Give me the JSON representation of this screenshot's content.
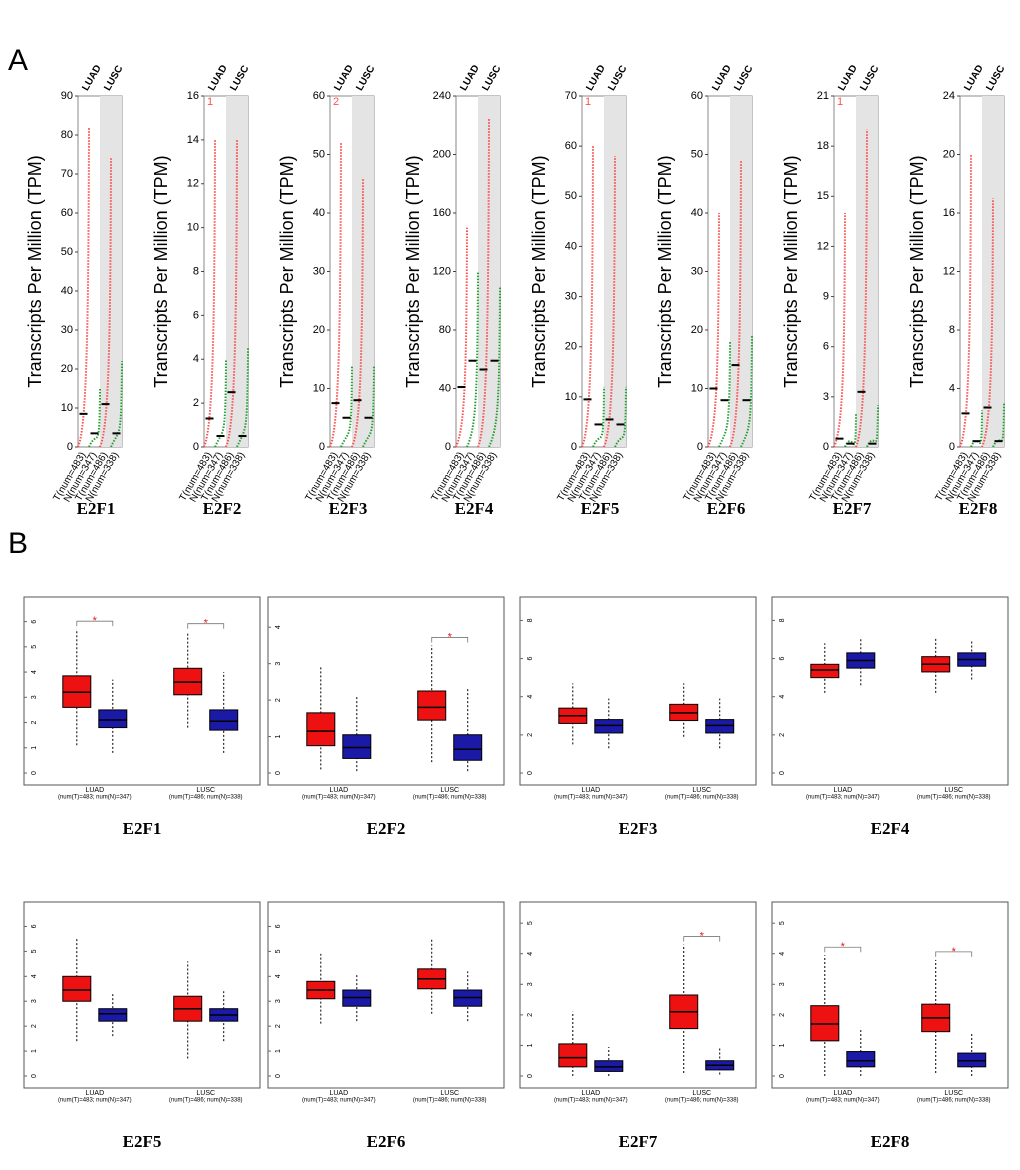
{
  "panel_labels": [
    "A",
    "B"
  ],
  "chart_data": [
    {
      "type": "dot",
      "title": "E2F1",
      "y_label": "Transcripts Per Million (TPM)",
      "ylim": [
        0,
        90
      ],
      "yticks": [
        0,
        10,
        20,
        30,
        40,
        50,
        60,
        70,
        80,
        90
      ],
      "groups": [
        {
          "name": "LUAD",
          "series": [
            {
              "name": "T(num=483)",
              "color": "#ff4d4d",
              "median": 8.5,
              "max": 82
            },
            {
              "name": "N(num=347)",
              "color": "#22a030",
              "median": 3.5,
              "max": 15
            }
          ]
        },
        {
          "name": "LUSC",
          "series": [
            {
              "name": "T(num=486)",
              "color": "#ff4d4d",
              "median": 11,
              "max": 74
            },
            {
              "name": "N(num=338)",
              "color": "#22a030",
              "median": 3.5,
              "max": 22
            }
          ]
        }
      ]
    },
    {
      "type": "dot",
      "title": "E2F2",
      "y_label": "Transcripts Per Million (TPM)",
      "note": "1",
      "ylim": [
        0,
        16
      ],
      "yticks": [
        0,
        2,
        4,
        6,
        8,
        10,
        12,
        14,
        16
      ],
      "groups": [
        {
          "name": "LUAD",
          "series": [
            {
              "name": "T(num=483)",
              "color": "#ff4d4d",
              "median": 1.3,
              "max": 14
            },
            {
              "name": "N(num=347)",
              "color": "#22a030",
              "median": 0.5,
              "max": 4
            }
          ]
        },
        {
          "name": "LUSC",
          "series": [
            {
              "name": "T(num=486)",
              "color": "#ff4d4d",
              "median": 2.5,
              "max": 14
            },
            {
              "name": "N(num=338)",
              "color": "#22a030",
              "median": 0.5,
              "max": 4.5
            }
          ]
        }
      ]
    },
    {
      "type": "dot",
      "title": "E2F3",
      "y_label": "Transcripts Per Million (TPM)",
      "note": "2",
      "ylim": [
        0,
        60
      ],
      "yticks": [
        0,
        10,
        20,
        30,
        40,
        50,
        60
      ],
      "groups": [
        {
          "name": "LUAD",
          "series": [
            {
              "name": "T(num=483)",
              "color": "#ff4d4d",
              "median": 7.5,
              "max": 52
            },
            {
              "name": "N(num=347)",
              "color": "#22a030",
              "median": 5,
              "max": 14
            }
          ]
        },
        {
          "name": "LUSC",
          "series": [
            {
              "name": "T(num=486)",
              "color": "#ff4d4d",
              "median": 8,
              "max": 46
            },
            {
              "name": "N(num=338)",
              "color": "#22a030",
              "median": 5,
              "max": 14
            }
          ]
        }
      ]
    },
    {
      "type": "dot",
      "title": "E2F4",
      "y_label": "Transcripts Per Million (TPM)",
      "ylim": [
        0,
        240
      ],
      "yticks": [
        0,
        40,
        80,
        120,
        160,
        200,
        240
      ],
      "groups": [
        {
          "name": "LUAD",
          "series": [
            {
              "name": "T(num=483)",
              "color": "#ff4d4d",
              "median": 41,
              "max": 150
            },
            {
              "name": "N(num=347)",
              "color": "#22a030",
              "median": 59,
              "max": 120
            }
          ]
        },
        {
          "name": "LUSC",
          "series": [
            {
              "name": "T(num=486)",
              "color": "#ff4d4d",
              "median": 53,
              "max": 225
            },
            {
              "name": "N(num=338)",
              "color": "#22a030",
              "median": 59,
              "max": 110
            }
          ]
        }
      ]
    },
    {
      "type": "dot",
      "title": "E2F5",
      "y_label": "Transcripts Per Million (TPM)",
      "note": "1",
      "ylim": [
        0,
        70
      ],
      "yticks": [
        0,
        10,
        20,
        30,
        40,
        50,
        60,
        70
      ],
      "groups": [
        {
          "name": "LUAD",
          "series": [
            {
              "name": "T(num=483)",
              "color": "#ff4d4d",
              "median": 9.5,
              "max": 60
            },
            {
              "name": "N(num=347)",
              "color": "#22a030",
              "median": 4.5,
              "max": 12
            }
          ]
        },
        {
          "name": "LUSC",
          "series": [
            {
              "name": "T(num=486)",
              "color": "#ff4d4d",
              "median": 5.5,
              "max": 58
            },
            {
              "name": "N(num=338)",
              "color": "#22a030",
              "median": 4.5,
              "max": 12
            }
          ]
        }
      ]
    },
    {
      "type": "dot",
      "title": "E2F6",
      "y_label": "Transcripts Per Million (TPM)",
      "ylim": [
        0,
        60
      ],
      "yticks": [
        0,
        10,
        20,
        30,
        40,
        50,
        60
      ],
      "groups": [
        {
          "name": "LUAD",
          "series": [
            {
              "name": "T(num=483)",
              "color": "#ff4d4d",
              "median": 10,
              "max": 40
            },
            {
              "name": "N(num=347)",
              "color": "#22a030",
              "median": 8,
              "max": 18
            }
          ]
        },
        {
          "name": "LUSC",
          "series": [
            {
              "name": "T(num=486)",
              "color": "#ff4d4d",
              "median": 14,
              "max": 49
            },
            {
              "name": "N(num=338)",
              "color": "#22a030",
              "median": 8,
              "max": 19
            }
          ]
        }
      ]
    },
    {
      "type": "dot",
      "title": "E2F7",
      "y_label": "Transcripts Per Million (TPM)",
      "note": "1",
      "ylim": [
        0,
        21
      ],
      "yticks": [
        0,
        3,
        6,
        9,
        12,
        15,
        18,
        21
      ],
      "groups": [
        {
          "name": "LUAD",
          "series": [
            {
              "name": "T(num=483)",
              "color": "#ff4d4d",
              "median": 0.5,
              "max": 14
            },
            {
              "name": "N(num=347)",
              "color": "#22a030",
              "median": 0.2,
              "max": 2
            }
          ]
        },
        {
          "name": "LUSC",
          "series": [
            {
              "name": "T(num=486)",
              "color": "#ff4d4d",
              "median": 3.3,
              "max": 19
            },
            {
              "name": "N(num=338)",
              "color": "#22a030",
              "median": 0.2,
              "max": 2.5
            }
          ]
        }
      ]
    },
    {
      "type": "dot",
      "title": "E2F8",
      "y_label": "Transcripts Per Million (TPM)",
      "ylim": [
        0,
        24
      ],
      "yticks": [
        0,
        4,
        8,
        12,
        16,
        20,
        24
      ],
      "groups": [
        {
          "name": "LUAD",
          "series": [
            {
              "name": "T(num=483)",
              "color": "#ff4d4d",
              "median": 2.3,
              "max": 20
            },
            {
              "name": "N(num=347)",
              "color": "#22a030",
              "median": 0.4,
              "max": 2.5
            }
          ]
        },
        {
          "name": "LUSC",
          "series": [
            {
              "name": "T(num=486)",
              "color": "#ff4d4d",
              "median": 2.7,
              "max": 17
            },
            {
              "name": "N(num=338)",
              "color": "#22a030",
              "median": 0.4,
              "max": 3
            }
          ]
        }
      ]
    },
    {
      "type": "box",
      "title": "E2F1",
      "ylim": [
        0,
        6.5
      ],
      "yticks": [
        0,
        1,
        2,
        3,
        4,
        5,
        6
      ],
      "tumor_color": "#ee1111",
      "normal_color": "#1a1aa6",
      "groups": [
        {
          "name": "LUAD",
          "counts": "(num(T)=483; num(N)=347)",
          "tumor": [
            1.1,
            2.6,
            3.2,
            3.85,
            5.7
          ],
          "normal": [
            0.8,
            1.8,
            2.1,
            2.5,
            3.7
          ],
          "significance": "*"
        },
        {
          "name": "LUSC",
          "counts": "(num(T)=486; num(N)=338)",
          "tumor": [
            1.8,
            3.1,
            3.6,
            4.15,
            5.6
          ],
          "normal": [
            0.8,
            1.7,
            2.05,
            2.5,
            4.0
          ],
          "significance": "*"
        }
      ]
    },
    {
      "type": "box",
      "title": "E2F2",
      "ylim": [
        0,
        4.5
      ],
      "yticks": [
        0,
        1,
        2,
        3,
        4
      ],
      "tumor_color": "#ee1111",
      "normal_color": "#1a1aa6",
      "groups": [
        {
          "name": "LUAD",
          "counts": "(num(T)=483; num(N)=347)",
          "tumor": [
            0.1,
            0.75,
            1.15,
            1.65,
            2.95
          ],
          "normal": [
            0.05,
            0.4,
            0.7,
            1.05,
            2.1
          ]
        },
        {
          "name": "LUSC",
          "counts": "(num(T)=486; num(N)=338)",
          "tumor": [
            0.3,
            1.45,
            1.8,
            2.25,
            3.5
          ],
          "normal": [
            0.05,
            0.35,
            0.65,
            1.05,
            2.3
          ],
          "significance": "*"
        }
      ]
    },
    {
      "type": "box",
      "title": "E2F3",
      "ylim": [
        0,
        8.6
      ],
      "yticks": [
        0,
        2,
        4,
        6,
        8
      ],
      "tumor_color": "#ee1111",
      "normal_color": "#1a1aa6",
      "groups": [
        {
          "name": "LUAD",
          "counts": "(num(T)=483; num(N)=347)",
          "tumor": [
            1.5,
            2.6,
            3.0,
            3.4,
            4.7
          ],
          "normal": [
            1.3,
            2.1,
            2.5,
            2.8,
            3.9
          ]
        },
        {
          "name": "LUSC",
          "counts": "(num(T)=486; num(N)=338)",
          "tumor": [
            1.9,
            2.75,
            3.15,
            3.6,
            4.7
          ],
          "normal": [
            1.3,
            2.1,
            2.5,
            2.8,
            3.9
          ]
        }
      ]
    },
    {
      "type": "box",
      "title": "E2F4",
      "ylim": [
        0,
        8.6
      ],
      "yticks": [
        0,
        2,
        4,
        6,
        8
      ],
      "tumor_color": "#ee1111",
      "normal_color": "#1a1aa6",
      "groups": [
        {
          "name": "LUAD",
          "counts": "(num(T)=483; num(N)=347)",
          "tumor": [
            4.2,
            5.0,
            5.4,
            5.7,
            6.8
          ],
          "normal": [
            4.6,
            5.5,
            5.9,
            6.3,
            7.1
          ]
        },
        {
          "name": "LUSC",
          "counts": "(num(T)=486; num(N)=338)",
          "tumor": [
            4.2,
            5.3,
            5.7,
            6.1,
            7.1
          ],
          "normal": [
            4.9,
            5.6,
            5.95,
            6.3,
            7.0
          ]
        }
      ]
    },
    {
      "type": "box",
      "title": "E2F5",
      "ylim": [
        0,
        6.5
      ],
      "yticks": [
        0,
        1,
        2,
        3,
        4,
        5,
        6
      ],
      "tumor_color": "#ee1111",
      "normal_color": "#1a1aa6",
      "groups": [
        {
          "name": "LUAD",
          "counts": "(num(T)=483; num(N)=347)",
          "tumor": [
            1.4,
            3.0,
            3.45,
            4.0,
            5.5
          ],
          "normal": [
            1.6,
            2.2,
            2.5,
            2.7,
            3.3
          ]
        },
        {
          "name": "LUSC",
          "counts": "(num(T)=486; num(N)=338)",
          "tumor": [
            0.7,
            2.2,
            2.7,
            3.2,
            4.6
          ],
          "normal": [
            1.4,
            2.2,
            2.45,
            2.7,
            3.4
          ]
        }
      ]
    },
    {
      "type": "box",
      "title": "E2F6",
      "ylim": [
        0,
        6.5
      ],
      "yticks": [
        0,
        1,
        2,
        3,
        4,
        5,
        6
      ],
      "tumor_color": "#ee1111",
      "normal_color": "#1a1aa6",
      "groups": [
        {
          "name": "LUAD",
          "counts": "(num(T)=483; num(N)=347)",
          "tumor": [
            2.1,
            3.1,
            3.45,
            3.8,
            4.9
          ],
          "normal": [
            2.2,
            2.8,
            3.15,
            3.45,
            4.1
          ]
        },
        {
          "name": "LUSC",
          "counts": "(num(T)=486; num(N)=338)",
          "tumor": [
            2.5,
            3.5,
            3.9,
            4.3,
            5.5
          ],
          "normal": [
            2.2,
            2.8,
            3.15,
            3.45,
            4.2
          ]
        }
      ]
    },
    {
      "type": "box",
      "title": "E2F7",
      "ylim": [
        0,
        5.3
      ],
      "yticks": [
        0,
        1,
        2,
        3,
        4,
        5
      ],
      "tumor_color": "#ee1111",
      "normal_color": "#1a1aa6",
      "groups": [
        {
          "name": "LUAD",
          "counts": "(num(T)=483; num(N)=347)",
          "tumor": [
            0,
            0.3,
            0.6,
            1.05,
            2.1
          ],
          "normal": [
            0,
            0.15,
            0.3,
            0.5,
            0.95
          ]
        },
        {
          "name": "LUSC",
          "counts": "(num(T)=486; num(N)=338)",
          "tumor": [
            0.1,
            1.55,
            2.1,
            2.65,
            4.3
          ],
          "normal": [
            0.05,
            0.2,
            0.35,
            0.5,
            0.9
          ],
          "significance": "*"
        }
      ]
    },
    {
      "type": "box",
      "title": "E2F8",
      "ylim": [
        0,
        5.3
      ],
      "yticks": [
        0,
        1,
        2,
        3,
        4,
        5
      ],
      "tumor_color": "#ee1111",
      "normal_color": "#1a1aa6",
      "groups": [
        {
          "name": "LUAD",
          "counts": "(num(T)=483; num(N)=347)",
          "tumor": [
            0,
            1.15,
            1.7,
            2.3,
            3.95
          ],
          "normal": [
            0,
            0.3,
            0.5,
            0.8,
            1.5
          ],
          "significance": "*"
        },
        {
          "name": "LUSC",
          "counts": "(num(T)=486; num(N)=338)",
          "tumor": [
            0.1,
            1.45,
            1.9,
            2.35,
            3.8
          ],
          "normal": [
            0,
            0.3,
            0.5,
            0.75,
            1.4
          ],
          "significance": "*"
        }
      ]
    }
  ]
}
